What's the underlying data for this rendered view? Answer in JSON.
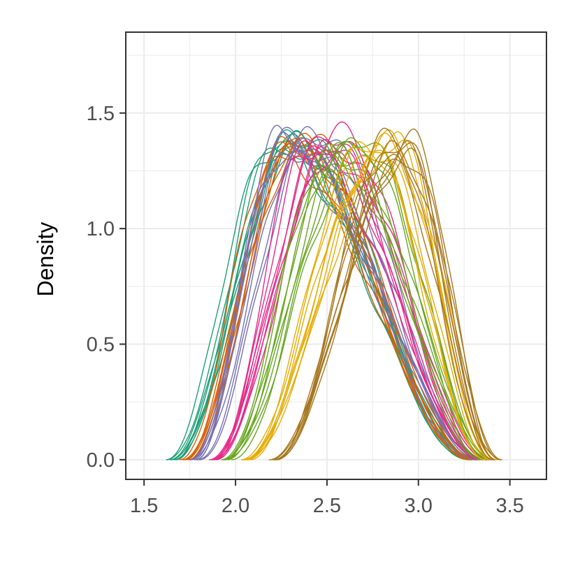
{
  "chart_data": {
    "type": "line",
    "title": "",
    "xlabel": "",
    "ylabel": "Density",
    "xlim": [
      1.4,
      3.7
    ],
    "ylim": [
      -0.085,
      1.85
    ],
    "x_ticks": [
      "1.5",
      "2.0",
      "2.5",
      "3.0",
      "3.5"
    ],
    "y_ticks": [
      "0.0",
      "0.5",
      "1.0",
      "1.5"
    ],
    "grid": true,
    "legend": "none",
    "series": [
      {
        "group": 1,
        "color": "#1b9e77",
        "n_curves": 8,
        "left": 1.65,
        "right": 3.3,
        "peak": 2.25,
        "height": 1.37
      },
      {
        "group": 2,
        "color": "#d95f02",
        "n_curves": 8,
        "left": 1.72,
        "right": 3.32,
        "peak": 2.3,
        "height": 1.37
      },
      {
        "group": 3,
        "color": "#7570b3",
        "n_curves": 8,
        "left": 1.78,
        "right": 3.34,
        "peak": 2.35,
        "height": 1.37
      },
      {
        "group": 4,
        "color": "#e7298a",
        "n_curves": 8,
        "left": 1.87,
        "right": 3.36,
        "peak": 2.45,
        "height": 1.37
      },
      {
        "group": 5,
        "color": "#66a61e",
        "n_curves": 8,
        "left": 1.95,
        "right": 3.38,
        "peak": 2.62,
        "height": 1.36
      },
      {
        "group": 6,
        "color": "#e6ab02",
        "n_curves": 8,
        "left": 2.05,
        "right": 3.4,
        "peak": 2.78,
        "height": 1.34
      },
      {
        "group": 7,
        "color": "#a6761d",
        "n_curves": 8,
        "left": 2.2,
        "right": 3.44,
        "peak": 2.88,
        "height": 1.35
      }
    ]
  }
}
